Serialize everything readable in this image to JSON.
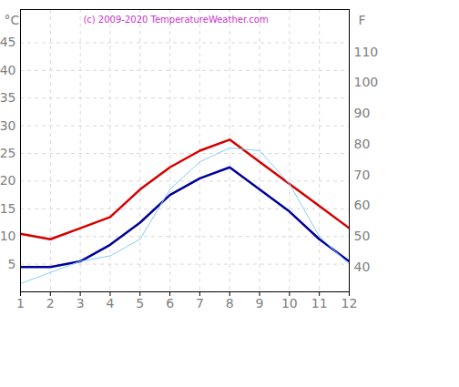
{
  "chart_data": {
    "type": "line",
    "title": "(c) 2009-2020 TemperatureWeather.com",
    "y_label": "°C",
    "y2_label": "F",
    "x": [
      1,
      2,
      3,
      4,
      5,
      6,
      7,
      8,
      9,
      10,
      11,
      12
    ],
    "series": [
      {
        "color": "#d40000",
        "values": [
          10.5,
          9.5,
          11.5,
          13.5,
          18.5,
          22.5,
          25.5,
          27.5,
          23.5,
          19.5,
          15.5,
          11.5
        ]
      },
      {
        "color": "#000099",
        "values": [
          4.5,
          4.5,
          5.5,
          8.5,
          12.5,
          17.5,
          20.5,
          22.5,
          18.5,
          14.5,
          9.5,
          5.5
        ]
      },
      {
        "color": "#87cefa",
        "values": [
          1.5,
          3.5,
          5.5,
          6.5,
          9.5,
          18.5,
          23.5,
          26,
          25.5,
          19.5,
          10,
          5
        ]
      }
    ],
    "xlim": [
      1,
      12
    ],
    "xticks": [
      1,
      2,
      3,
      4,
      5,
      6,
      7,
      8,
      9,
      10,
      11,
      12
    ],
    "ylim": [
      0,
      51
    ],
    "yticks": [
      5,
      10,
      15,
      20,
      25,
      30,
      35,
      40,
      45
    ],
    "y2lim": [
      32,
      123.8
    ],
    "y2ticks": [
      40,
      50,
      60,
      70,
      80,
      90,
      100,
      110
    ],
    "grid": true
  }
}
